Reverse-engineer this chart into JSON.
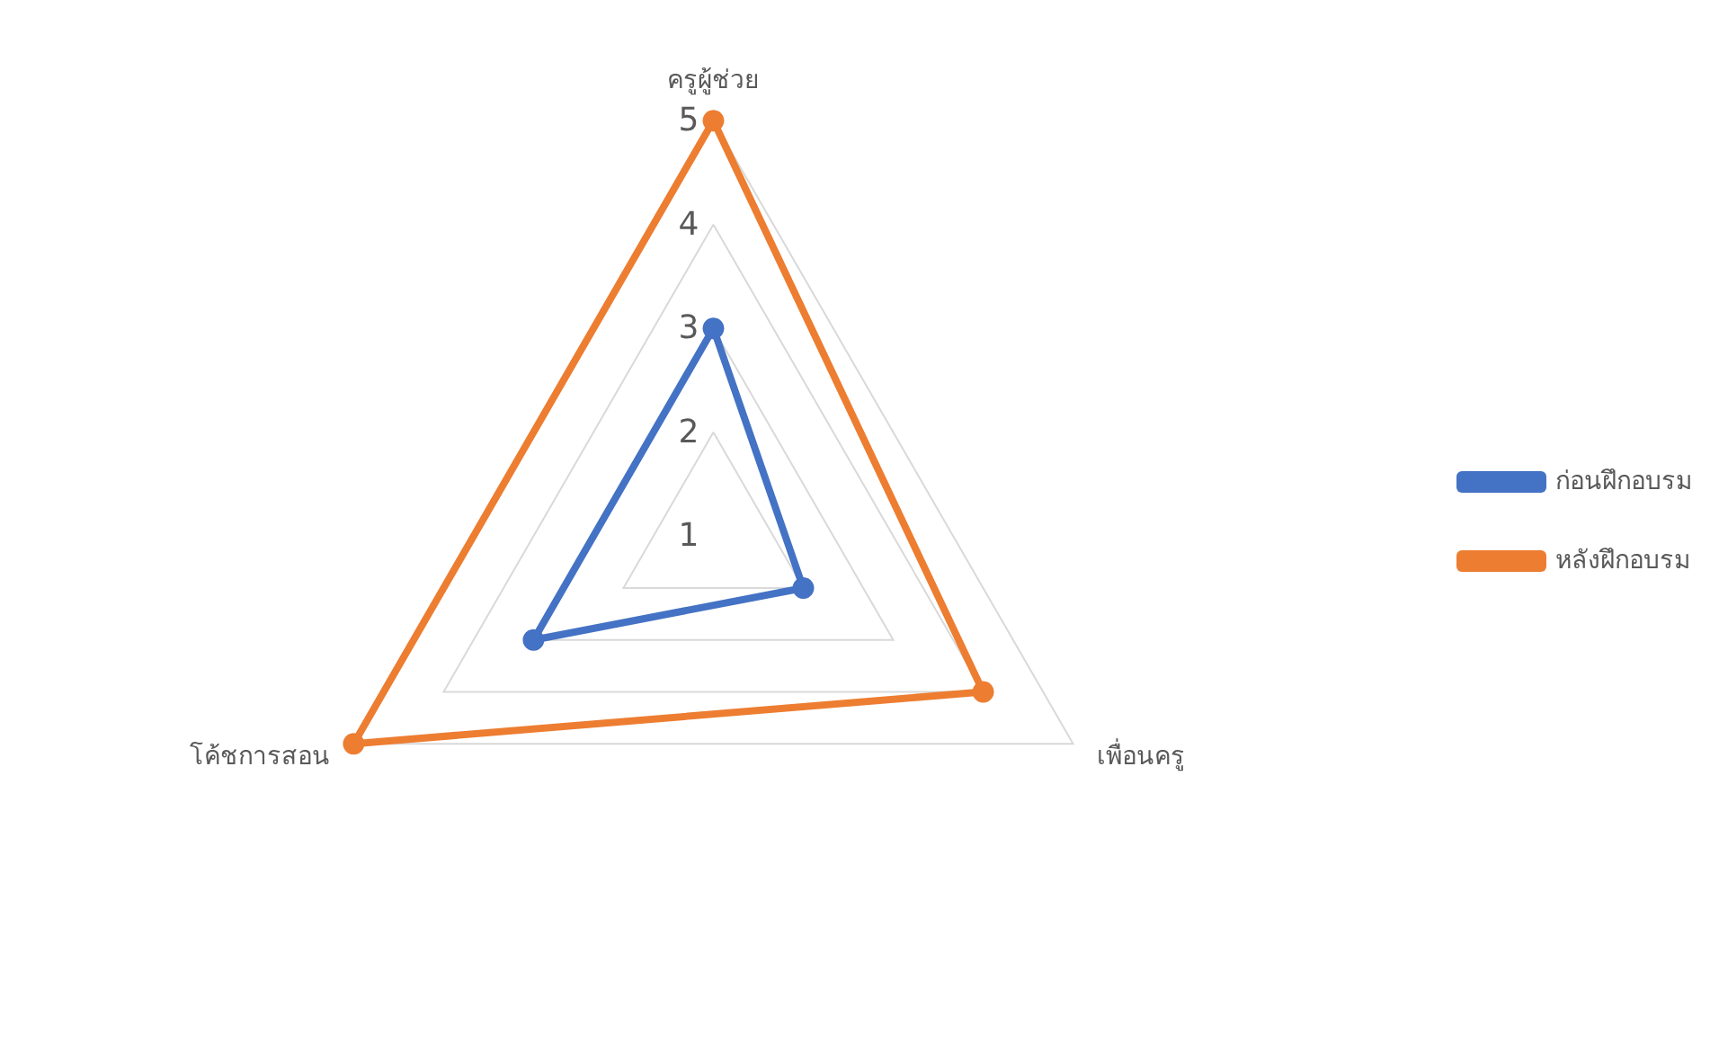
{
  "chart_data": {
    "type": "radar",
    "categories": [
      "ครูผู้ช่วย",
      "เพื่อนครู",
      "โค้ชการสอน"
    ],
    "series": [
      {
        "name": "ก่อนฝึกอบรม",
        "color": "#4472c4",
        "values": [
          3,
          2,
          3
        ]
      },
      {
        "name": "หลังฝึกอบรม",
        "color": "#ed7d31",
        "values": [
          5,
          4,
          5
        ]
      }
    ],
    "ylim": [
      1,
      5
    ],
    "yticks": [
      1,
      2,
      3,
      4,
      5
    ],
    "grid": true,
    "legend": "right",
    "marker": "circle"
  }
}
